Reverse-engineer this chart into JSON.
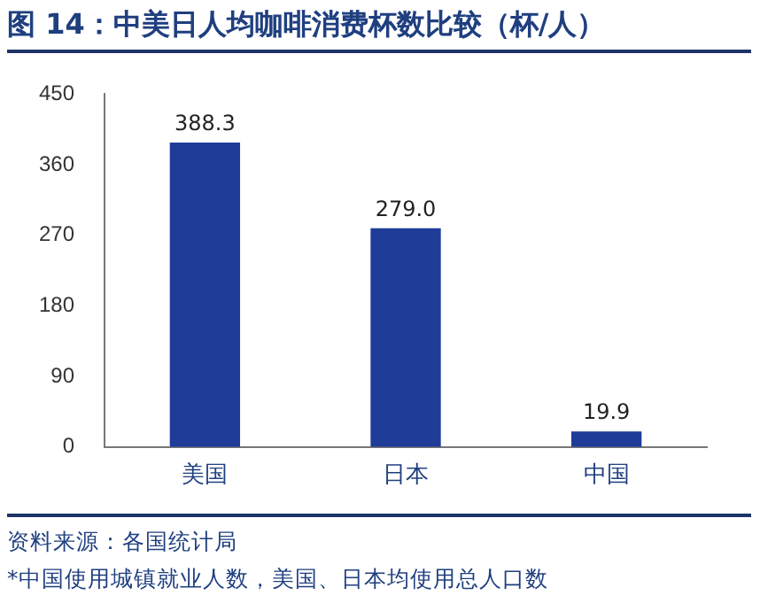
{
  "chart_data": {
    "type": "bar",
    "title": "图 14：中美日人均咖啡消费杯数比较（杯/人）",
    "categories": [
      "美国",
      "日本",
      "中国"
    ],
    "values": [
      388.3,
      279.0,
      19.9
    ],
    "color": "#1f3c99",
    "value_labels": [
      "388.3",
      "279.0",
      "19.9"
    ],
    "ylim": [
      0,
      450
    ],
    "yticks": [
      0,
      90,
      180,
      270,
      360,
      450
    ],
    "grid": false,
    "legend": false,
    "annotations": [
      "资料来源：各国统计局",
      "*中国使用城镇就业人数，美国、日本均使用总人口数"
    ]
  }
}
